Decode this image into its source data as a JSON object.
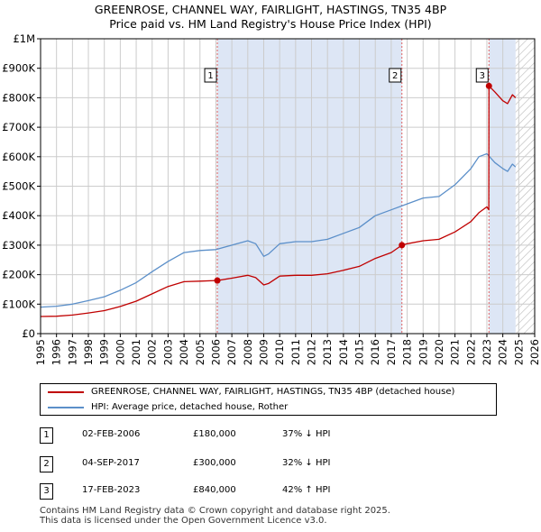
{
  "title_line1": "GREENROSE, CHANNEL WAY, FAIRLIGHT, HASTINGS, TN35 4BP",
  "title_line2": "Price paid vs. HM Land Registry's House Price Index (HPI)",
  "colors": {
    "property": "#c00000",
    "hpi": "#5b8fc9",
    "shade": "#dde6f5",
    "grid": "#cccccc"
  },
  "chart_data": {
    "type": "line",
    "title": "GREENROSE, CHANNEL WAY, FAIRLIGHT, HASTINGS, TN35 4BP — Price paid vs. HM Land Registry's House Price Index (HPI)",
    "xlabel": "",
    "ylabel": "",
    "xlim": [
      1995,
      2026
    ],
    "ylim": [
      0,
      1000000
    ],
    "x_ticks": [
      "1995",
      "1996",
      "1997",
      "1998",
      "1999",
      "2000",
      "2001",
      "2002",
      "2003",
      "2004",
      "2005",
      "2006",
      "2007",
      "2008",
      "2009",
      "2010",
      "2011",
      "2012",
      "2013",
      "2014",
      "2015",
      "2016",
      "2017",
      "2018",
      "2019",
      "2020",
      "2021",
      "2022",
      "2023",
      "2024",
      "2025",
      "2026"
    ],
    "y_ticks": [
      {
        "value": 0,
        "label": "£0"
      },
      {
        "value": 100000,
        "label": "£100K"
      },
      {
        "value": 200000,
        "label": "£200K"
      },
      {
        "value": 300000,
        "label": "£300K"
      },
      {
        "value": 400000,
        "label": "£400K"
      },
      {
        "value": 500000,
        "label": "£500K"
      },
      {
        "value": 600000,
        "label": "£600K"
      },
      {
        "value": 700000,
        "label": "£700K"
      },
      {
        "value": 800000,
        "label": "£800K"
      },
      {
        "value": 900000,
        "label": "£900K"
      },
      {
        "value": 1000000,
        "label": "£1M"
      }
    ],
    "shaded_ranges": [
      [
        2006.09,
        2017.67
      ],
      [
        2023.13,
        2024.8
      ]
    ],
    "hatched_range": [
      2024.8,
      2026
    ],
    "series": [
      {
        "name": "GREENROSE, CHANNEL WAY, FAIRLIGHT, HASTINGS, TN35 4BP (detached house)",
        "color": "#c00000",
        "x": [
          1995.0,
          1996.0,
          1997.0,
          1998.0,
          1999.0,
          2000.0,
          2001.0,
          2002.0,
          2003.0,
          2004.0,
          2005.0,
          2006.0,
          2006.09,
          2007.0,
          2008.0,
          2008.5,
          2009.0,
          2009.3,
          2010.0,
          2011.0,
          2012.0,
          2013.0,
          2014.0,
          2015.0,
          2016.0,
          2017.0,
          2017.67,
          2018.0,
          2019.0,
          2020.0,
          2021.0,
          2022.0,
          2022.5,
          2023.0,
          2023.12,
          2023.13,
          2023.5,
          2024.0,
          2024.3,
          2024.6,
          2024.8
        ],
        "y": [
          58000,
          59000,
          63000,
          70000,
          78000,
          92000,
          110000,
          135000,
          160000,
          176000,
          178000,
          180000,
          180000,
          188000,
          198000,
          190000,
          165000,
          170000,
          195000,
          198000,
          198000,
          203000,
          215000,
          228000,
          255000,
          275000,
          300000,
          305000,
          315000,
          320000,
          345000,
          380000,
          410000,
          430000,
          420000,
          840000,
          820000,
          790000,
          780000,
          810000,
          800000
        ]
      },
      {
        "name": "HPI: Average price, detached house, Rother",
        "color": "#5b8fc9",
        "x": [
          1995.0,
          1996.0,
          1997.0,
          1998.0,
          1999.0,
          2000.0,
          2001.0,
          2002.0,
          2003.0,
          2004.0,
          2005.0,
          2006.0,
          2007.0,
          2008.0,
          2008.5,
          2009.0,
          2009.3,
          2010.0,
          2011.0,
          2012.0,
          2013.0,
          2014.0,
          2015.0,
          2016.0,
          2017.0,
          2018.0,
          2019.0,
          2020.0,
          2021.0,
          2022.0,
          2022.5,
          2023.0,
          2023.5,
          2024.0,
          2024.3,
          2024.6,
          2024.8
        ],
        "y": [
          90000,
          93000,
          100000,
          112000,
          125000,
          147000,
          173000,
          210000,
          245000,
          275000,
          282000,
          285000,
          300000,
          315000,
          305000,
          262000,
          270000,
          305000,
          312000,
          312000,
          320000,
          340000,
          360000,
          400000,
          420000,
          440000,
          460000,
          465000,
          505000,
          560000,
          600000,
          610000,
          580000,
          560000,
          550000,
          575000,
          565000
        ]
      }
    ],
    "sales": [
      {
        "label": "1",
        "x": 2006.09,
        "y": 180000
      },
      {
        "label": "2",
        "x": 2017.67,
        "y": 300000
      },
      {
        "label": "3",
        "x": 2023.13,
        "y": 840000
      }
    ]
  },
  "legend": {
    "property_label": "GREENROSE, CHANNEL WAY, FAIRLIGHT, HASTINGS, TN35 4BP (detached house)",
    "hpi_label": "HPI: Average price, detached house, Rother"
  },
  "sales_table": [
    {
      "num": "1",
      "date": "02-FEB-2006",
      "price": "£180,000",
      "hpi": "37% ↓ HPI"
    },
    {
      "num": "2",
      "date": "04-SEP-2017",
      "price": "£300,000",
      "hpi": "32% ↓ HPI"
    },
    {
      "num": "3",
      "date": "17-FEB-2023",
      "price": "£840,000",
      "hpi": "42% ↑ HPI"
    }
  ],
  "footer_line1": "Contains HM Land Registry data © Crown copyright and database right 2025.",
  "footer_line2": "This data is licensed under the Open Government Licence v3.0."
}
